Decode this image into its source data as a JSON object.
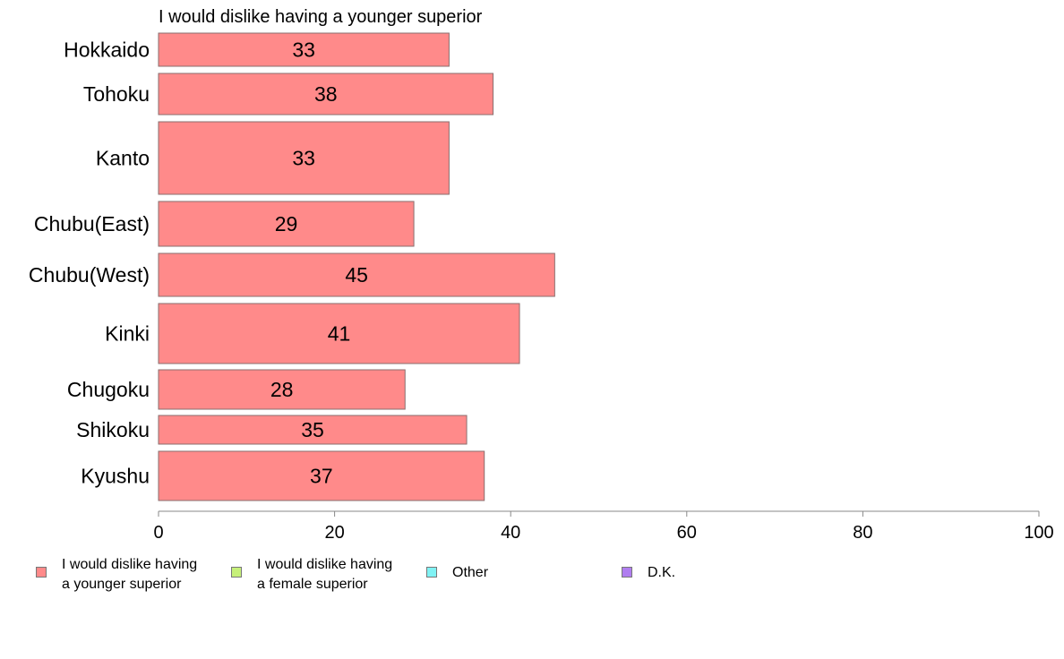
{
  "chart_data": {
    "type": "bar",
    "orientation": "horizontal",
    "title": "I would dislike having a younger superior",
    "categories": [
      "Hokkaido",
      "Tohoku",
      "Kanto",
      "Chubu(East)",
      "Chubu(West)",
      "Kinki",
      "Chugoku",
      "Shikoku",
      "Kyushu"
    ],
    "series": [
      {
        "name": "I would dislike having a younger superior",
        "values": [
          33,
          38,
          33,
          29,
          45,
          41,
          28,
          35,
          37
        ],
        "color": "#ff8a8a"
      }
    ],
    "xlim": [
      0,
      100
    ],
    "x_ticks": [
      "0",
      "20",
      "40",
      "60",
      "80",
      "100"
    ],
    "grid": false,
    "legend_position": "bottom"
  },
  "legend": {
    "items": [
      {
        "label": "I would dislike having\na younger superior",
        "color": "#ff8a8a"
      },
      {
        "label": "I would dislike having\na female superior",
        "color": "#c6f07a"
      },
      {
        "label": "Other",
        "color": "#80f2f4"
      },
      {
        "label": "D.K.",
        "color": "#b07ef0"
      }
    ]
  }
}
